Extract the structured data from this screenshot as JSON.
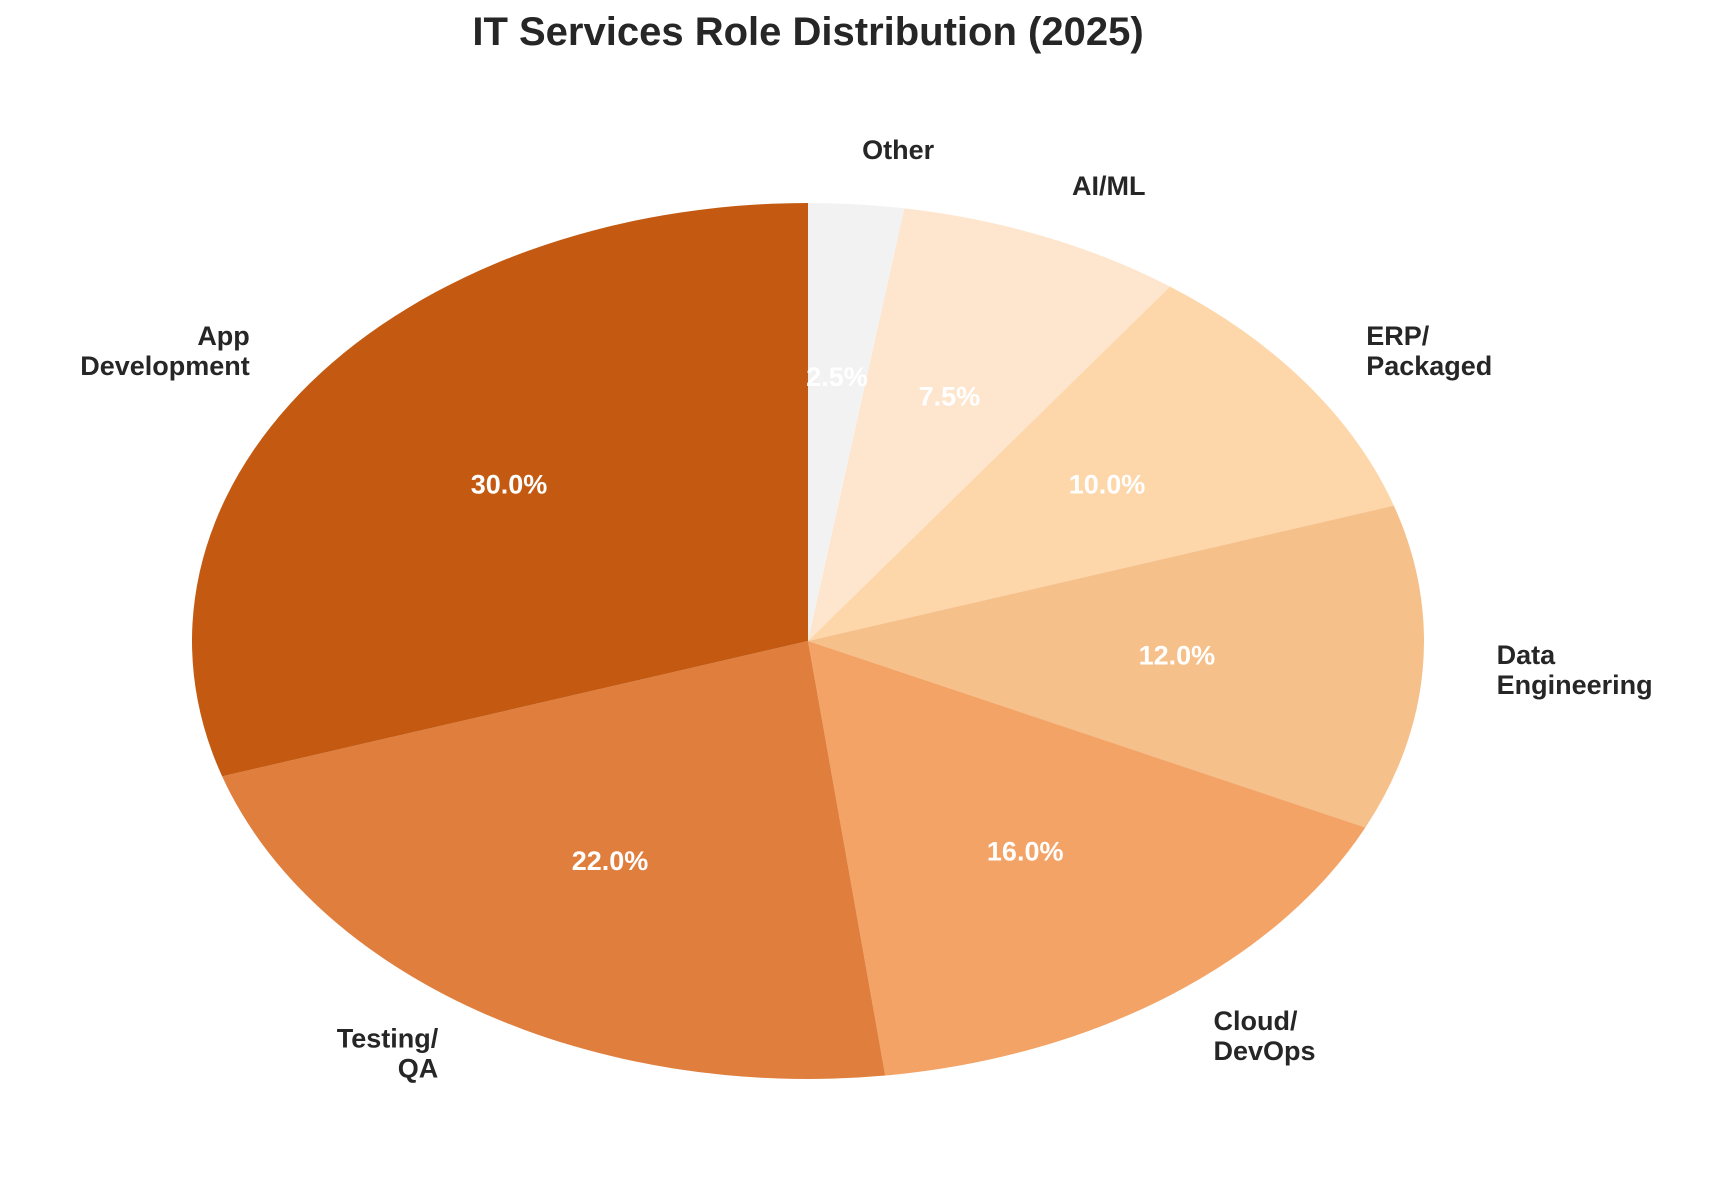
{
  "chart_data": {
    "type": "pie",
    "title": "IT Services Role Distribution (2025)",
    "start_angle_deg": 90,
    "direction": "clockwise",
    "slices": [
      {
        "label": "Other",
        "label_lines": [
          "Other"
        ],
        "value": 2.5,
        "pct_text": "2.5%",
        "color": "#f2f2f2"
      },
      {
        "label": "AI/ML",
        "label_lines": [
          "AI/ML"
        ],
        "value": 7.5,
        "pct_text": "7.5%",
        "color": "#fee6ce"
      },
      {
        "label": "ERP/ Packaged",
        "label_lines": [
          "ERP/",
          "Packaged"
        ],
        "value": 10.0,
        "pct_text": "10.0%",
        "color": "#fdd7aa"
      },
      {
        "label": "Data Engineering",
        "label_lines": [
          "Data",
          "Engineering"
        ],
        "value": 12.0,
        "pct_text": "12.0%",
        "color": "#f6c08a"
      },
      {
        "label": "Cloud/ DevOps",
        "label_lines": [
          "Cloud/",
          "DevOps"
        ],
        "value": 16.0,
        "pct_text": "16.0%",
        "color": "#f2a365"
      },
      {
        "label": "Testing/ QA",
        "label_lines": [
          "Testing/",
          "QA"
        ],
        "value": 22.0,
        "pct_text": "22.0%",
        "color": "#e07e3e"
      },
      {
        "label": "App Development",
        "label_lines": [
          "App",
          "Development"
        ],
        "value": 30.0,
        "pct_text": "30.0%",
        "color": "#c45a11"
      }
    ]
  }
}
